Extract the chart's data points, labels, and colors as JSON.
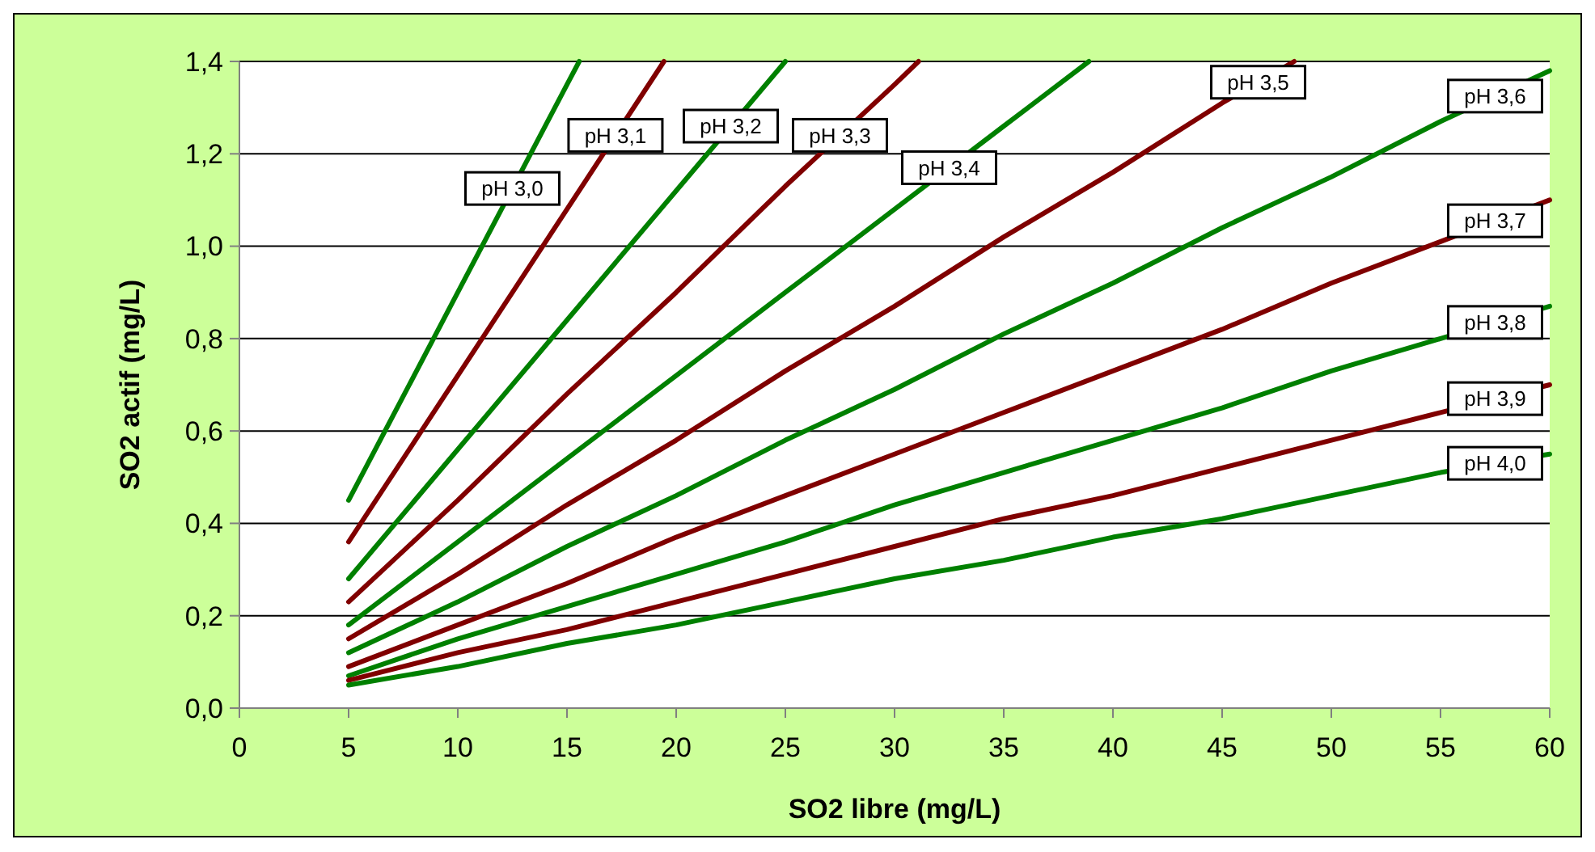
{
  "chart_data": {
    "type": "line",
    "xlabel": "SO2 libre (mg/L)",
    "ylabel": "SO2 actif (mg/L)",
    "xlim": [
      0,
      60
    ],
    "xticks": [
      0,
      5,
      10,
      15,
      20,
      25,
      30,
      35,
      40,
      45,
      50,
      55,
      60
    ],
    "ylim": [
      0,
      1.4
    ],
    "yticks": [
      {
        "value": 0,
        "label": "0,0"
      },
      {
        "value": 0.2,
        "label": "0,2"
      },
      {
        "value": 0.4,
        "label": "0,4"
      },
      {
        "value": 0.6,
        "label": "0,6"
      },
      {
        "value": 0.8,
        "label": "0,8"
      },
      {
        "value": 1,
        "label": "1,0"
      },
      {
        "value": 1.2,
        "label": "1,2"
      },
      {
        "value": 1.4,
        "label": "1,4"
      }
    ],
    "grid": "y",
    "marker": "none",
    "line_style": "solid",
    "series": [
      {
        "name": "pH 3,0",
        "color": "#008000",
        "x": [
          5,
          10,
          15,
          15.56
        ],
        "values": [
          0.45,
          0.9,
          1.35,
          1.4
        ]
      },
      {
        "name": "pH 3,1",
        "color": "#800000",
        "x": [
          5,
          10,
          15,
          19.44
        ],
        "values": [
          0.36,
          0.72,
          1.08,
          1.4
        ]
      },
      {
        "name": "pH 3,2",
        "color": "#008000",
        "x": [
          5,
          10,
          15,
          20,
          25
        ],
        "values": [
          0.28,
          0.56,
          0.84,
          1.12,
          1.4
        ]
      },
      {
        "name": "pH 3,3",
        "color": "#800000",
        "x": [
          5,
          10,
          15,
          20,
          25,
          30,
          31.1
        ],
        "values": [
          0.23,
          0.45,
          0.68,
          0.9,
          1.13,
          1.35,
          1.4
        ]
      },
      {
        "name": "pH 3,4",
        "color": "#008000",
        "x": [
          5,
          10,
          15,
          20,
          25,
          30,
          35,
          38.9
        ],
        "values": [
          0.18,
          0.36,
          0.54,
          0.72,
          0.9,
          1.08,
          1.26,
          1.4
        ]
      },
      {
        "name": "pH 3,5",
        "color": "#800000",
        "x": [
          5,
          10,
          15,
          20,
          25,
          30,
          35,
          40,
          45,
          48.3
        ],
        "values": [
          0.15,
          0.29,
          0.44,
          0.58,
          0.73,
          0.87,
          1.02,
          1.16,
          1.31,
          1.4
        ]
      },
      {
        "name": "pH 3,6",
        "color": "#008000",
        "x": [
          5,
          10,
          15,
          20,
          25,
          30,
          35,
          40,
          45,
          50,
          55,
          60
        ],
        "values": [
          0.12,
          0.23,
          0.35,
          0.46,
          0.58,
          0.69,
          0.81,
          0.92,
          1.04,
          1.15,
          1.27,
          1.38
        ]
      },
      {
        "name": "pH 3,7",
        "color": "#800000",
        "x": [
          5,
          10,
          15,
          20,
          25,
          30,
          35,
          40,
          45,
          50,
          55,
          60
        ],
        "values": [
          0.09,
          0.18,
          0.27,
          0.37,
          0.46,
          0.55,
          0.64,
          0.73,
          0.82,
          0.92,
          1.01,
          1.1
        ]
      },
      {
        "name": "pH 3,8",
        "color": "#008000",
        "x": [
          5,
          10,
          15,
          20,
          25,
          30,
          35,
          40,
          45,
          50,
          55,
          60
        ],
        "values": [
          0.07,
          0.15,
          0.22,
          0.29,
          0.36,
          0.44,
          0.51,
          0.58,
          0.65,
          0.73,
          0.8,
          0.87
        ]
      },
      {
        "name": "pH 3,9",
        "color": "#800000",
        "x": [
          5,
          10,
          15,
          20,
          25,
          30,
          35,
          40,
          45,
          50,
          55,
          60
        ],
        "values": [
          0.06,
          0.12,
          0.17,
          0.23,
          0.29,
          0.35,
          0.41,
          0.46,
          0.52,
          0.58,
          0.64,
          0.7
        ]
      },
      {
        "name": "pH 4,0",
        "color": "#008000",
        "x": [
          5,
          10,
          15,
          20,
          25,
          30,
          35,
          40,
          45,
          50,
          55,
          60
        ],
        "values": [
          0.05,
          0.09,
          0.14,
          0.18,
          0.23,
          0.28,
          0.32,
          0.37,
          0.41,
          0.46,
          0.51,
          0.55
        ]
      }
    ]
  }
}
